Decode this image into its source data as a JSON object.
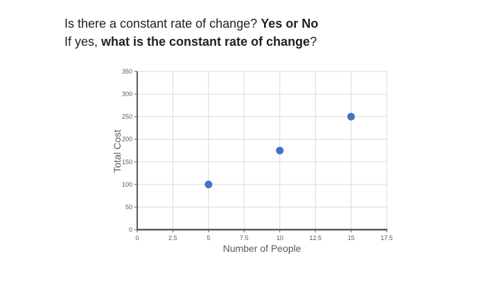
{
  "slide": {
    "title": {
      "line1": {
        "normal": "Is there a constant rate of change? ",
        "bold": "Yes or No"
      },
      "line2": {
        "prefix": "If yes, ",
        "bold": "what is the constant rate of change",
        "suffix": "?"
      }
    }
  },
  "chart_data": {
    "type": "scatter",
    "title": "",
    "xlabel": "Number of People",
    "ylabel": "Total Cost",
    "points": [
      {
        "x": 5,
        "y": 100
      },
      {
        "x": 10,
        "y": 175
      },
      {
        "x": 15,
        "y": 250
      }
    ],
    "xlim": [
      0,
      17.5
    ],
    "ylim": [
      0,
      350
    ],
    "xticks": [
      0,
      2.5,
      5,
      7.5,
      10,
      12.5,
      15,
      17.5
    ],
    "yticks": [
      0,
      50,
      100,
      150,
      200,
      250,
      300,
      350
    ],
    "grid": true,
    "legend": false,
    "marker_radius": 5.5,
    "colors": {
      "point": "#4472C4",
      "grid": "#D9D9D9",
      "axis": "#595959",
      "tick_label": "#595959",
      "axis_label": "#595959"
    }
  }
}
